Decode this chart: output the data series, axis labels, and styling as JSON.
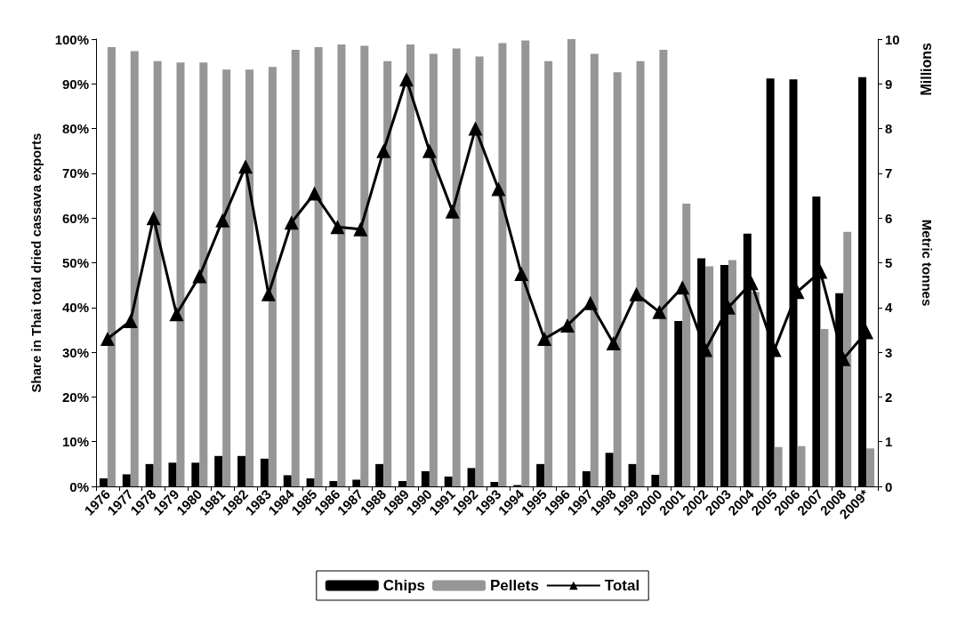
{
  "chart_data": {
    "type": "bar",
    "ylabel": "Share in Thai total dried cassava exports",
    "y2label": "Metric tonnes",
    "annotations": [
      "Millions"
    ],
    "categories": [
      "1976",
      "1977",
      "1978",
      "1979",
      "1980",
      "1981",
      "1982",
      "1983",
      "1984",
      "1985",
      "1986",
      "1987",
      "1988",
      "1989",
      "1990",
      "1991",
      "1992",
      "1993",
      "1994",
      "1995",
      "1996",
      "1997",
      "1998",
      "1999",
      "2000",
      "2001",
      "2002",
      "2003",
      "2004",
      "2005",
      "2006",
      "2007",
      "2008",
      "2009*"
    ],
    "series": [
      {
        "name": "Chips",
        "color": "#000000",
        "values": [
          1.8,
          2.7,
          5,
          5.3,
          5.3,
          6.8,
          6.8,
          6.2,
          2.5,
          1.8,
          1.2,
          1.5,
          5,
          1.2,
          3.4,
          2.2,
          4.1,
          1,
          0.3,
          5,
          0,
          3.4,
          7.5,
          5,
          2.6,
          37,
          51,
          49.5,
          56.5,
          91.2,
          91,
          64.8,
          43.2,
          91.5
        ]
      },
      {
        "name": "Pellets",
        "color": "#969696",
        "values": [
          98.2,
          97.3,
          95.1,
          94.8,
          94.8,
          93.2,
          93.2,
          93.8,
          97.6,
          98.2,
          98.8,
          98.5,
          95.1,
          98.8,
          96.7,
          97.9,
          96.1,
          99.1,
          99.7,
          95.1,
          100,
          96.7,
          92.6,
          95.1,
          97.6,
          63.2,
          49.2,
          50.6,
          43.5,
          8.8,
          9,
          35.2,
          56.9,
          8.5
        ]
      },
      {
        "name": "Total",
        "type": "line",
        "axis": "y2",
        "color": "#000000",
        "values": [
          3.3,
          3.7,
          6.0,
          3.85,
          4.7,
          5.95,
          7.15,
          4.3,
          5.9,
          6.55,
          5.8,
          5.75,
          7.5,
          9.1,
          7.5,
          6.15,
          8.0,
          6.65,
          4.75,
          3.3,
          3.6,
          4.1,
          3.2,
          4.3,
          3.9,
          4.45,
          3.05,
          4.0,
          4.55,
          3.05,
          4.35,
          4.8,
          2.85,
          3.45
        ]
      }
    ],
    "ylim": [
      0,
      100
    ],
    "yticks": [
      {
        "value": 0,
        "label": "0%"
      },
      {
        "value": 10,
        "label": "10%"
      },
      {
        "value": 20,
        "label": "20%"
      },
      {
        "value": 30,
        "label": "30%"
      },
      {
        "value": 40,
        "label": "40%"
      },
      {
        "value": 50,
        "label": "50%"
      },
      {
        "value": 60,
        "label": "60%"
      },
      {
        "value": 70,
        "label": "70%"
      },
      {
        "value": 80,
        "label": "80%"
      },
      {
        "value": 90,
        "label": "90%"
      },
      {
        "value": 100,
        "label": "100%"
      }
    ],
    "y2lim": [
      0,
      10
    ],
    "y2ticks": [
      0,
      1,
      2,
      3,
      4,
      5,
      6,
      7,
      8,
      9,
      10
    ],
    "grid": false,
    "legend": "bottom",
    "marker": "triangle",
    "line_style": "solid"
  }
}
